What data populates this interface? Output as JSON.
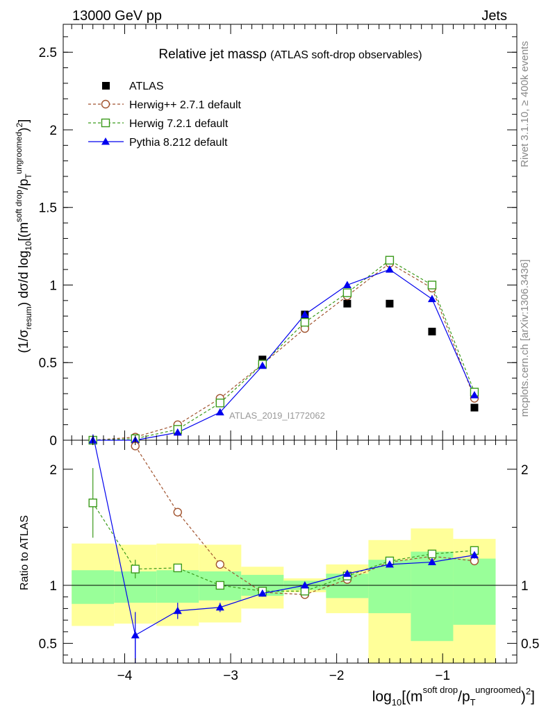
{
  "header": {
    "beam": "13000 GeV pp",
    "process": "Jets"
  },
  "side_labels": {
    "rivet": "Rivet 3.1.10, ≥ 400k events",
    "mcplots": "mcplots.cern.ch [arXiv:1306.3436]"
  },
  "colors": {
    "atlas": "#000000",
    "herwigpp": "#a0522d",
    "herwig7": "#3a9a1a",
    "pythia": "#0000ee",
    "band_outer": "#ffff99",
    "band_inner": "#99ff99"
  },
  "chart_data": [
    {
      "type": "line",
      "title": "Relative jet massρ",
      "subtitle": "(ATLAS soft-drop observables)",
      "watermark": "ATLAS_2019_I1772062",
      "xlabel": "log10[(m^{soft drop}/p_T^{ungroomed})^2]",
      "ylabel": "(1/σresum) dσ/d log10[(m^{soft drop}/p_T^{ungroomed})^2]",
      "xlim": [
        -4.58,
        -0.3
      ],
      "ylim": [
        0,
        2.68
      ],
      "yticks": [
        0,
        0.5,
        1,
        1.5,
        2,
        2.5
      ],
      "ytick_labels": [
        "0",
        "0.5",
        "1",
        "1.5",
        "2",
        "2.5"
      ],
      "x": [
        -4.3,
        -3.9,
        -3.5,
        -3.1,
        -2.7,
        -2.3,
        -1.9,
        -1.5,
        -1.1,
        -0.7
      ],
      "series": [
        {
          "name": "ATLAS",
          "marker": "filled-square",
          "values": [
            0.0,
            0.01,
            0.06,
            0.24,
            0.52,
            0.81,
            0.88,
            0.88,
            0.7,
            0.21
          ]
        },
        {
          "name": "Herwig++ 2.7.1 default",
          "marker": "open-circle",
          "style": "dashed",
          "values": [
            0.0,
            0.02,
            0.1,
            0.27,
            0.49,
            0.72,
            0.93,
            1.14,
            0.98,
            0.27
          ]
        },
        {
          "name": "Herwig 7.2.1 default",
          "marker": "open-square",
          "style": "dashed",
          "values": [
            0.0,
            0.01,
            0.07,
            0.24,
            0.49,
            0.76,
            0.95,
            1.16,
            1.0,
            0.31
          ]
        },
        {
          "name": "Pythia 8.212 default",
          "marker": "filled-triangle",
          "style": "solid",
          "values": [
            0.0,
            0.0,
            0.05,
            0.18,
            0.48,
            0.81,
            1.0,
            1.1,
            0.91,
            0.29
          ]
        }
      ]
    },
    {
      "type": "line",
      "ylabel": "Ratio to ATLAS",
      "xlabel": "log10[(m^{soft drop}/p_T^{ungroomed})^2]",
      "xlim": [
        -4.58,
        -0.3
      ],
      "ylim": [
        0.33,
        2.25
      ],
      "xticks": [
        -4,
        -3,
        -2,
        -1
      ],
      "xtick_labels": [
        "−4",
        "−3",
        "−2",
        "−1"
      ],
      "yticks": [
        0.5,
        1,
        2
      ],
      "ytick_labels": [
        "0.5",
        "1",
        "2"
      ],
      "bands": [
        {
          "x0": -4.5,
          "x1": -4.1,
          "inner": [
            0.84,
            1.13
          ],
          "outer": [
            0.65,
            1.36
          ]
        },
        {
          "x0": -4.1,
          "x1": -3.7,
          "inner": [
            0.85,
            1.12
          ],
          "outer": [
            0.67,
            1.35
          ]
        },
        {
          "x0": -3.7,
          "x1": -3.3,
          "inner": [
            0.85,
            1.13
          ],
          "outer": [
            0.65,
            1.36
          ]
        },
        {
          "x0": -3.3,
          "x1": -2.9,
          "inner": [
            0.87,
            1.12
          ],
          "outer": [
            0.68,
            1.35
          ]
        },
        {
          "x0": -2.9,
          "x1": -2.5,
          "inner": [
            0.91,
            1.09
          ],
          "outer": [
            0.8,
            1.16
          ]
        },
        {
          "x0": -2.5,
          "x1": -2.1,
          "inner": [
            0.96,
            1.04
          ],
          "outer": [
            0.94,
            1.06
          ]
        },
        {
          "x0": -2.1,
          "x1": -1.7,
          "inner": [
            0.89,
            1.1
          ],
          "outer": [
            0.76,
            1.18
          ]
        },
        {
          "x0": -1.7,
          "x1": -1.3,
          "inner": [
            0.76,
            1.22
          ],
          "outer": [
            0.33,
            1.39
          ]
        },
        {
          "x0": -1.3,
          "x1": -0.9,
          "inner": [
            0.52,
            1.29
          ],
          "outer": [
            0.33,
            1.49
          ]
        },
        {
          "x0": -0.9,
          "x1": -0.5,
          "inner": [
            0.66,
            1.23
          ],
          "outer": [
            0.33,
            1.4
          ]
        }
      ],
      "series": [
        {
          "name": "Herwig++ 2.7.1 default",
          "values": [
            null,
            2.2,
            1.63,
            1.18,
            0.94,
            0.92,
            1.05,
            1.2,
            1.25,
            1.21
          ],
          "errors": [
            null,
            0,
            0,
            0,
            0,
            0,
            0,
            0,
            0,
            0
          ]
        },
        {
          "name": "Herwig 7.2.1 default",
          "values": [
            1.71,
            1.14,
            1.15,
            1.0,
            0.95,
            0.95,
            1.08,
            1.21,
            1.27,
            1.3
          ],
          "errors": [
            0.3,
            0.08,
            0.02,
            0,
            0,
            0,
            0,
            0,
            0,
            0
          ]
        },
        {
          "name": "Pythia 8.212 default",
          "values": [
            2.3,
            0.57,
            0.78,
            0.81,
            0.93,
            1.0,
            1.1,
            1.18,
            1.2,
            1.26
          ],
          "errors": [
            0,
            0.2,
            0.07,
            0.04,
            0,
            0,
            0,
            0,
            0,
            0.03
          ]
        }
      ]
    }
  ]
}
